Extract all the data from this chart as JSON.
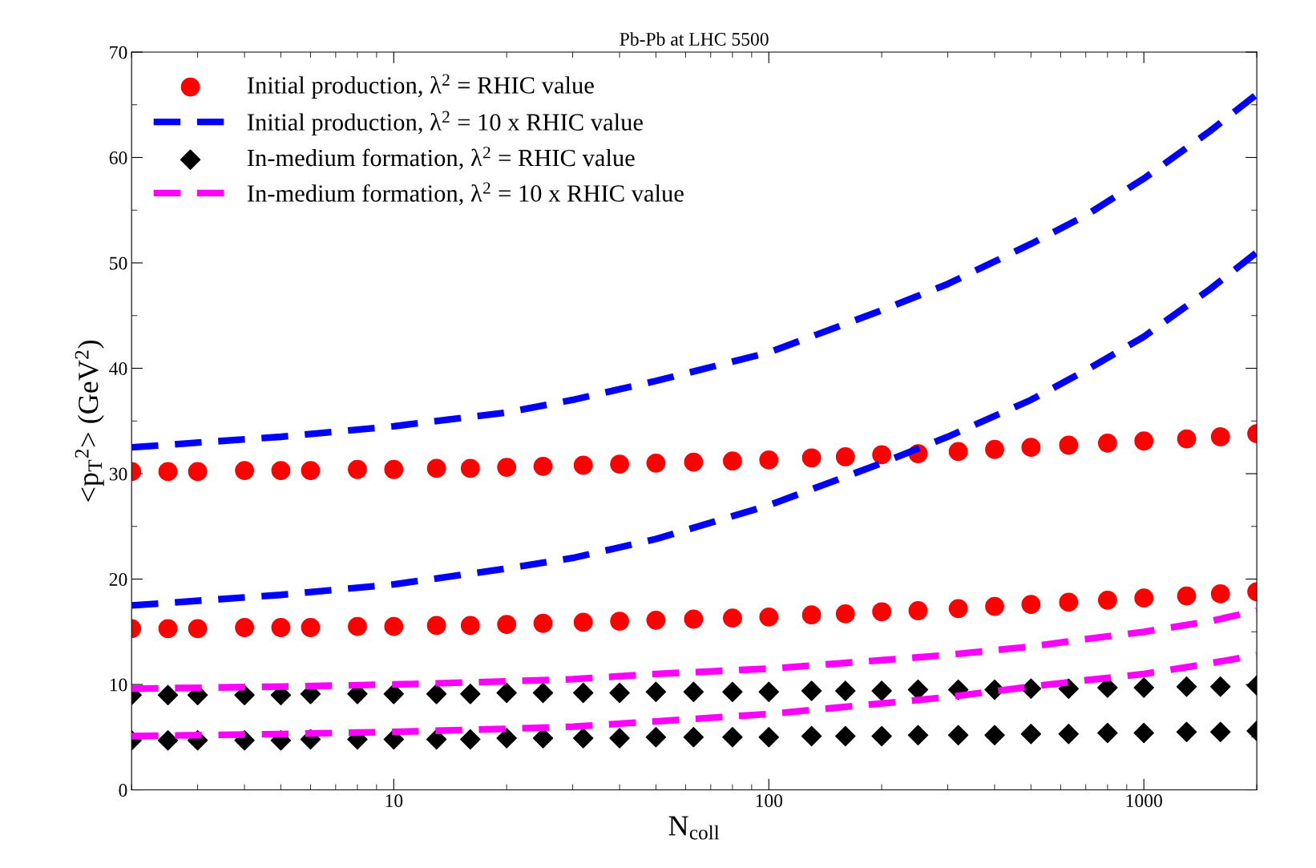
{
  "chart_data": {
    "type": "scatter",
    "title": "Pb-Pb at LHC 5500",
    "xlabel": "N$_{coll}$",
    "ylabel": "<p$_{T}$$^{2}$> (GeV$^{2}$)",
    "log": "x",
    "xlim": [
      2,
      2000
    ],
    "xticks": [
      10,
      100,
      1000
    ],
    "ylim": [
      0,
      70
    ],
    "yticks": [
      0,
      10,
      20,
      30,
      40,
      50,
      60,
      70
    ],
    "grid": false,
    "legend": "top left",
    "series": [
      {
        "name": "Initial production, λ$^{2}$ = RHIC value",
        "color": "#ff0000",
        "marker": "circle",
        "x": [
          2,
          2.5,
          3,
          4,
          5,
          6,
          8,
          10,
          13,
          16,
          20,
          25,
          32,
          40,
          50,
          63,
          80,
          100,
          130,
          160,
          200,
          250,
          320,
          400,
          500,
          630,
          800,
          1000,
          1300,
          1600,
          2000
        ],
        "values": [
          30.2,
          30.2,
          30.2,
          30.3,
          30.3,
          30.3,
          30.4,
          30.4,
          30.5,
          30.5,
          30.6,
          30.7,
          30.8,
          30.9,
          31.0,
          31.1,
          31.2,
          31.3,
          31.5,
          31.6,
          31.8,
          31.9,
          32.1,
          32.3,
          32.5,
          32.7,
          32.9,
          33.1,
          33.3,
          33.5,
          33.8
        ]
      },
      {
        "color": "#ff0000",
        "marker": "circle",
        "x": [
          2,
          2.5,
          3,
          4,
          5,
          6,
          8,
          10,
          13,
          16,
          20,
          25,
          32,
          40,
          50,
          63,
          80,
          100,
          130,
          160,
          200,
          250,
          320,
          400,
          500,
          630,
          800,
          1000,
          1300,
          1600,
          2000
        ],
        "values": [
          15.3,
          15.3,
          15.3,
          15.4,
          15.4,
          15.4,
          15.5,
          15.5,
          15.6,
          15.6,
          15.7,
          15.8,
          15.9,
          16.0,
          16.1,
          16.2,
          16.3,
          16.4,
          16.6,
          16.7,
          16.9,
          17.0,
          17.2,
          17.4,
          17.6,
          17.8,
          18.0,
          18.2,
          18.4,
          18.6,
          18.8
        ]
      },
      {
        "type": "line",
        "name": "Initial production, λ$^{2}$ = 10 x RHIC value",
        "color": "#0000ff",
        "line_style": "dashed",
        "x": [
          2,
          5,
          10,
          20,
          30,
          50,
          100,
          200,
          300,
          500,
          700,
          1000,
          1500,
          2000
        ],
        "values": [
          32.5,
          33.5,
          34.5,
          35.8,
          37,
          38.8,
          41.5,
          45.5,
          48,
          51.8,
          54.5,
          58,
          62.5,
          66
        ]
      },
      {
        "type": "line",
        "color": "#0000ff",
        "line_style": "dashed",
        "x": [
          2,
          5,
          10,
          20,
          30,
          50,
          100,
          200,
          300,
          500,
          700,
          1000,
          1500,
          2000
        ],
        "values": [
          17.5,
          18.5,
          19.5,
          21,
          22,
          23.8,
          27,
          31,
          33.5,
          37,
          39.8,
          43,
          47.5,
          51
        ]
      },
      {
        "name": "In-medium formation, λ$^{2}$ = RHIC value",
        "color": "#000000",
        "marker": "diamond",
        "x": [
          2,
          2.5,
          3,
          4,
          5,
          6,
          8,
          10,
          13,
          16,
          20,
          25,
          32,
          40,
          50,
          63,
          80,
          100,
          130,
          160,
          200,
          250,
          320,
          400,
          500,
          630,
          800,
          1000,
          1300,
          1600,
          2000
        ],
        "values": [
          9.0,
          9.0,
          9.0,
          9.0,
          9.0,
          9.1,
          9.1,
          9.1,
          9.1,
          9.1,
          9.2,
          9.2,
          9.2,
          9.2,
          9.3,
          9.3,
          9.3,
          9.3,
          9.4,
          9.4,
          9.4,
          9.5,
          9.5,
          9.5,
          9.6,
          9.6,
          9.7,
          9.7,
          9.8,
          9.8,
          9.9
        ]
      },
      {
        "color": "#000000",
        "marker": "diamond",
        "x": [
          2,
          2.5,
          3,
          4,
          5,
          6,
          8,
          10,
          13,
          16,
          20,
          25,
          32,
          40,
          50,
          63,
          80,
          100,
          130,
          160,
          200,
          250,
          320,
          400,
          500,
          630,
          800,
          1000,
          1300,
          1600,
          2000
        ],
        "values": [
          4.7,
          4.7,
          4.7,
          4.7,
          4.7,
          4.8,
          4.8,
          4.8,
          4.8,
          4.8,
          4.9,
          4.9,
          4.9,
          4.9,
          5.0,
          5.0,
          5.0,
          5.0,
          5.1,
          5.1,
          5.1,
          5.2,
          5.2,
          5.2,
          5.3,
          5.3,
          5.4,
          5.4,
          5.5,
          5.5,
          5.6
        ]
      },
      {
        "type": "line",
        "name": "In-medium formation, λ$^{2}$ = 10 x RHIC value",
        "color": "#ff00ff",
        "line_style": "dashed",
        "x": [
          2,
          5,
          10,
          20,
          30,
          50,
          100,
          200,
          300,
          500,
          700,
          1000,
          1500,
          2000
        ],
        "values": [
          9.6,
          9.8,
          10,
          10.3,
          10.5,
          11,
          11.5,
          12.3,
          12.8,
          13.6,
          14.3,
          15,
          16,
          17
        ]
      },
      {
        "type": "line",
        "color": "#ff00ff",
        "line_style": "dashed",
        "x": [
          2,
          5,
          10,
          20,
          30,
          50,
          100,
          200,
          300,
          500,
          700,
          1000,
          1500,
          2000
        ],
        "values": [
          5.1,
          5.3,
          5.5,
          5.8,
          6,
          6.5,
          7.2,
          8.2,
          8.8,
          9.8,
          10.4,
          11,
          12,
          12.8
        ]
      }
    ]
  }
}
